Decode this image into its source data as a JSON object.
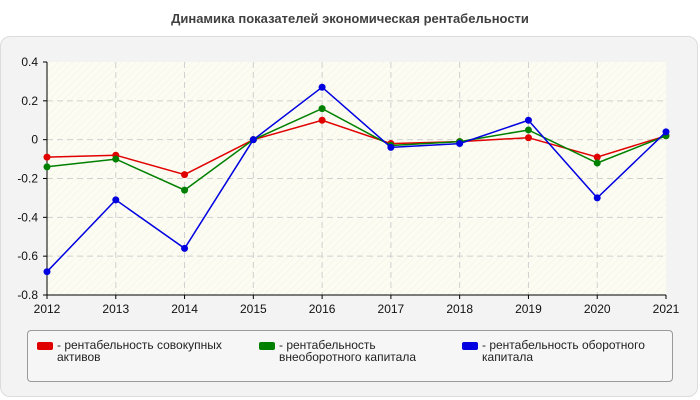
{
  "chart_data": {
    "type": "line",
    "title": "Динамика показателей экономическая рентабельности",
    "categories": [
      "2012",
      "2013",
      "2014",
      "2015",
      "2016",
      "2017",
      "2018",
      "2019",
      "2020",
      "2021"
    ],
    "ylim": [
      -0.8,
      0.4
    ],
    "yticks": [
      "0.4",
      "0.2",
      "0",
      "-0.2",
      "-0.4",
      "-0.6",
      "-0.8"
    ],
    "ytick_values": [
      0.4,
      0.2,
      0,
      -0.2,
      -0.4,
      -0.6,
      -0.8
    ],
    "grid": true,
    "legend_position": "bottom",
    "series": [
      {
        "name": "рентабельность совокупных активов",
        "color": "#e00000",
        "values": [
          -0.09,
          -0.08,
          -0.18,
          0.0,
          0.1,
          -0.02,
          -0.01,
          0.01,
          -0.09,
          0.02
        ]
      },
      {
        "name": "рентабельность внеоборотного капитала",
        "color": "#008000",
        "values": [
          -0.14,
          -0.1,
          -0.26,
          0.0,
          0.16,
          -0.03,
          -0.01,
          0.05,
          -0.12,
          0.02
        ]
      },
      {
        "name": "рентабельность оборотного капитала",
        "color": "#0000e0",
        "values": [
          -0.68,
          -0.31,
          -0.56,
          0.0,
          0.27,
          -0.04,
          -0.02,
          0.1,
          -0.3,
          0.04
        ]
      }
    ]
  },
  "legend": {
    "items": [
      {
        "line1": "- рентабельность совокупных",
        "line2": "активов",
        "color": "#e00000"
      },
      {
        "line1": "- рентабельность",
        "line2": "внеоборотного капитала",
        "color": "#008000"
      },
      {
        "line1": "- рентабельность оборотного",
        "line2": "капитала",
        "color": "#0000e0"
      }
    ]
  }
}
